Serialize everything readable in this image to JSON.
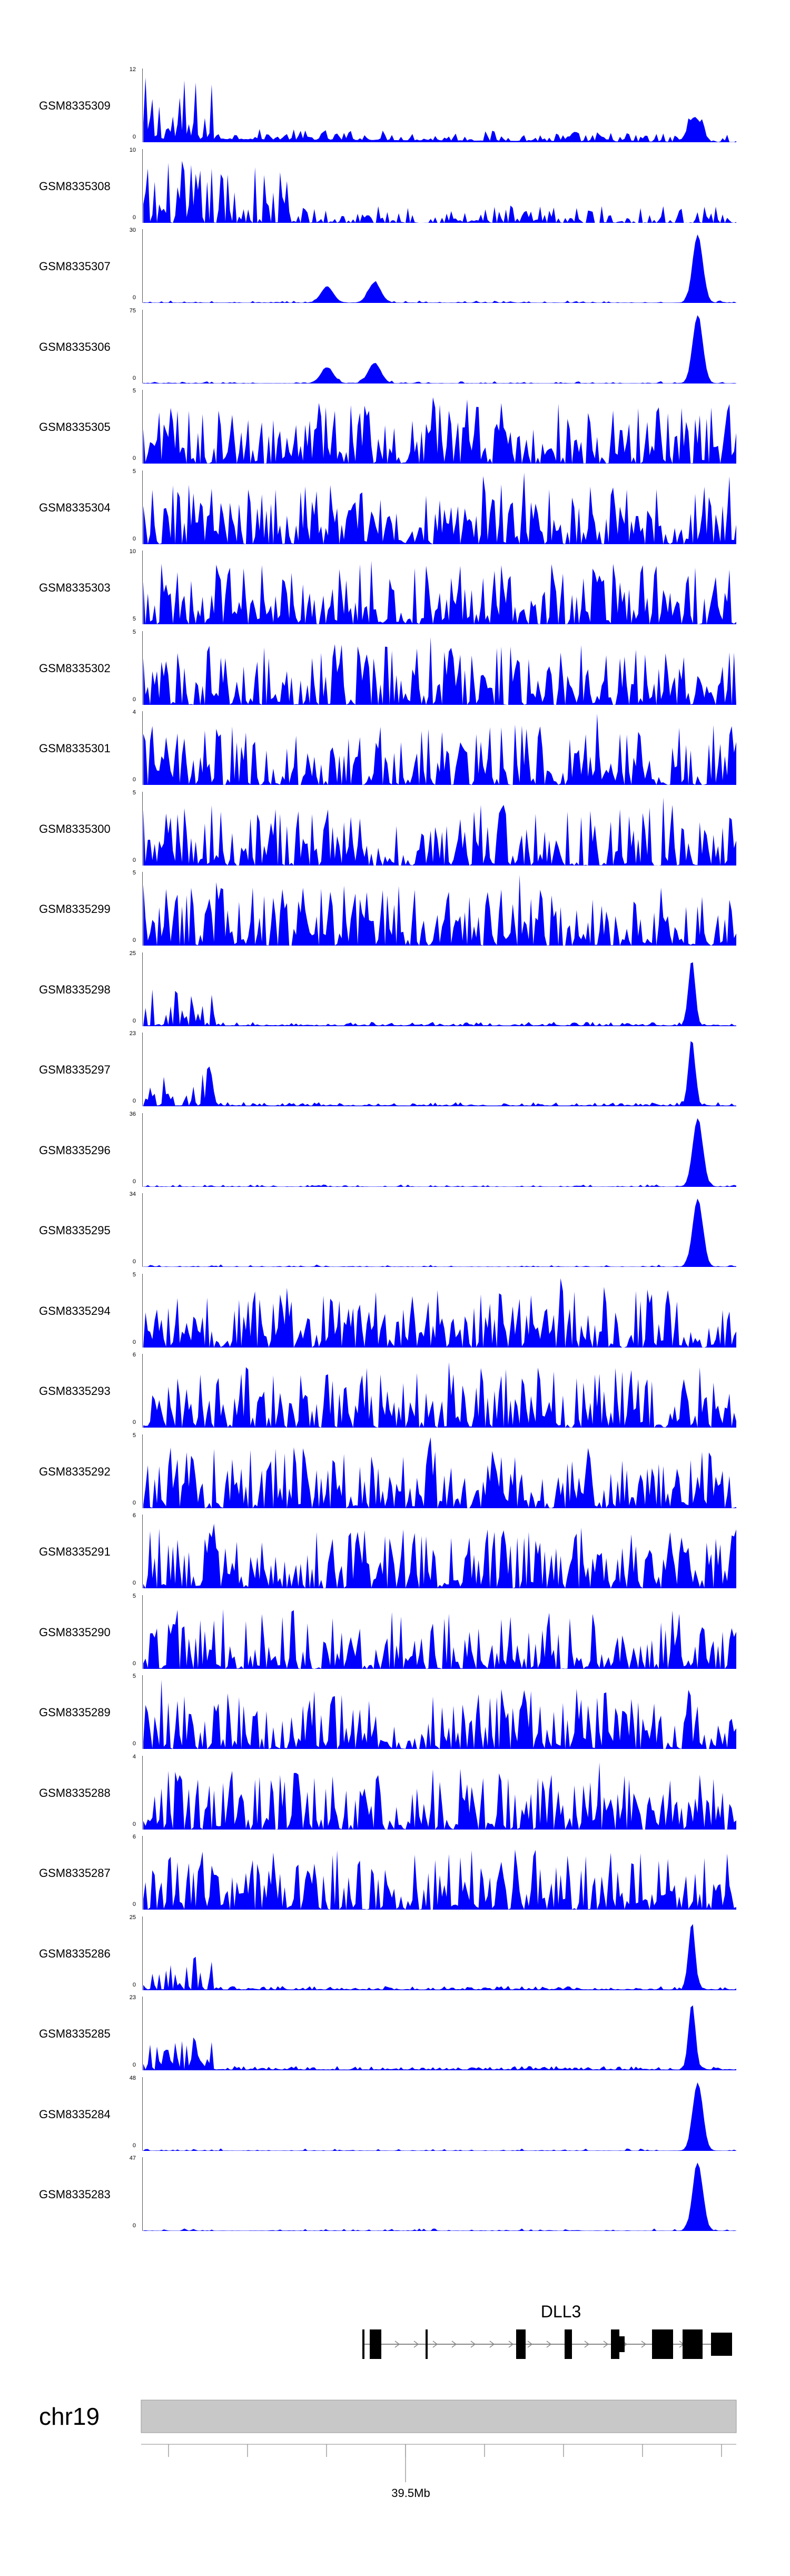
{
  "chart_data": {
    "type": "area",
    "color": "#0000ff",
    "locus": {
      "chromosome": "chr19",
      "tick_label": "39.5Mb",
      "gene": "DLL3"
    },
    "tracks": [
      {
        "name": "GSM8335309",
        "max": 12,
        "min": 0,
        "profile": "lead"
      },
      {
        "name": "GSM8335308",
        "max": 10,
        "min": 0,
        "profile": "lead2"
      },
      {
        "name": "GSM8335307",
        "max": 30,
        "min": 0,
        "profile": "peakmid"
      },
      {
        "name": "GSM8335306",
        "max": 75,
        "min": 0,
        "profile": "peakmid"
      },
      {
        "name": "GSM8335305",
        "max": 5,
        "min": 0,
        "profile": "noise"
      },
      {
        "name": "GSM8335304",
        "max": 5,
        "min": 0,
        "profile": "noise"
      },
      {
        "name": "GSM8335303",
        "max": 10,
        "min": 5,
        "profile": "noise"
      },
      {
        "name": "GSM8335302",
        "max": 5,
        "min": 0,
        "profile": "noise"
      },
      {
        "name": "GSM8335301",
        "max": 4,
        "min": 0,
        "profile": "noise"
      },
      {
        "name": "GSM8335300",
        "max": 5,
        "min": 0,
        "profile": "noise"
      },
      {
        "name": "GSM8335299",
        "max": 5,
        "min": 0,
        "profile": "noise"
      },
      {
        "name": "GSM8335298",
        "max": 25,
        "min": 0,
        "profile": "leadpeak"
      },
      {
        "name": "GSM8335297",
        "max": 23,
        "min": 0,
        "profile": "leadpeak"
      },
      {
        "name": "GSM8335296",
        "max": 36,
        "min": 0,
        "profile": "peak"
      },
      {
        "name": "GSM8335295",
        "max": 34,
        "min": 0,
        "profile": "peak"
      },
      {
        "name": "GSM8335294",
        "max": 5,
        "min": 0,
        "profile": "noise"
      },
      {
        "name": "GSM8335293",
        "max": 6,
        "min": 0,
        "profile": "noise"
      },
      {
        "name": "GSM8335292",
        "max": 5,
        "min": 0,
        "profile": "noise"
      },
      {
        "name": "GSM8335291",
        "max": 6,
        "min": 0,
        "profile": "noise"
      },
      {
        "name": "GSM8335290",
        "max": 5,
        "min": 0,
        "profile": "noise"
      },
      {
        "name": "GSM8335289",
        "max": 5,
        "min": 0,
        "profile": "noise"
      },
      {
        "name": "GSM8335288",
        "max": 4,
        "min": 0,
        "profile": "noise"
      },
      {
        "name": "GSM8335287",
        "max": 6,
        "min": 0,
        "profile": "noise"
      },
      {
        "name": "GSM8335286",
        "max": 25,
        "min": 0,
        "profile": "leadpeak"
      },
      {
        "name": "GSM8335285",
        "max": 23,
        "min": 0,
        "profile": "leadpeak"
      },
      {
        "name": "GSM8335284",
        "max": 48,
        "min": 0,
        "profile": "peak"
      },
      {
        "name": "GSM8335283",
        "max": 47,
        "min": 0,
        "profile": "peak"
      }
    ]
  }
}
